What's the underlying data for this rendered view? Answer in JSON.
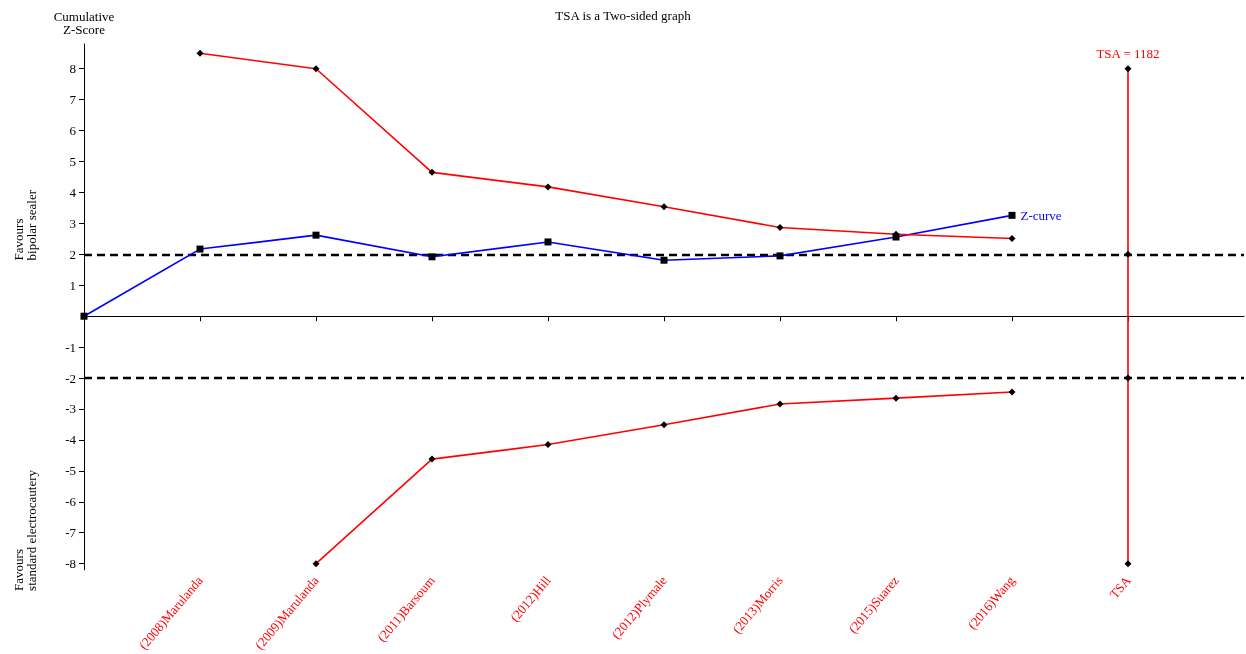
{
  "chart_data": {
    "type": "line",
    "title": "TSA is a Two-sided graph",
    "ylabel": "Cumulative\nZ-Score",
    "categories": [
      null,
      "(2008)Marulanda",
      "(2009)Marulanda",
      "(2011)Barsoum",
      "(2012)Hill",
      "(2012)Plymale",
      "(2013)Morris",
      "(2015)Suarez",
      "(2016)Wang",
      "TSA",
      null
    ],
    "series": [
      {
        "name": "Z-curve",
        "color": "#0000ff",
        "marker": "square",
        "values": [
          0,
          2.17,
          2.62,
          1.92,
          2.4,
          1.81,
          1.95,
          2.56,
          3.26,
          null,
          null
        ]
      },
      {
        "color": "#ff0000",
        "marker": "diamond",
        "values": [
          null,
          8.5,
          8.0,
          4.65,
          4.18,
          3.54,
          2.87,
          2.65,
          2.51,
          null,
          null
        ]
      },
      {
        "color": "#ff0000",
        "marker": "diamond",
        "values": [
          null,
          null,
          -8.0,
          -4.62,
          -4.15,
          -3.51,
          -2.84,
          -2.65,
          -2.45,
          null,
          null
        ]
      },
      {
        "name": "TSA = 1182",
        "color": "#ff0000",
        "marker": "diamond",
        "x": [
          "TSA",
          "TSA",
          "TSA",
          "TSA"
        ],
        "values": [
          8,
          2,
          -2,
          -8
        ]
      }
    ],
    "ylim": [
      -8.2,
      8.8
    ],
    "yticks": [
      -8,
      -7,
      -6,
      -5,
      -4,
      -3,
      -2,
      -1,
      1,
      2,
      3,
      4,
      5,
      6,
      7,
      8
    ],
    "ref_lines": [
      {
        "axis": "y",
        "value": 2,
        "color": "#000000",
        "line_style": "dashed"
      },
      {
        "axis": "y",
        "value": -2,
        "color": "#000000",
        "line_style": "dashed"
      }
    ],
    "annotations": [
      "Favours\nbipolar sealer",
      "Favours\nstandard electrocautery"
    ],
    "grid": false,
    "legend": false
  }
}
